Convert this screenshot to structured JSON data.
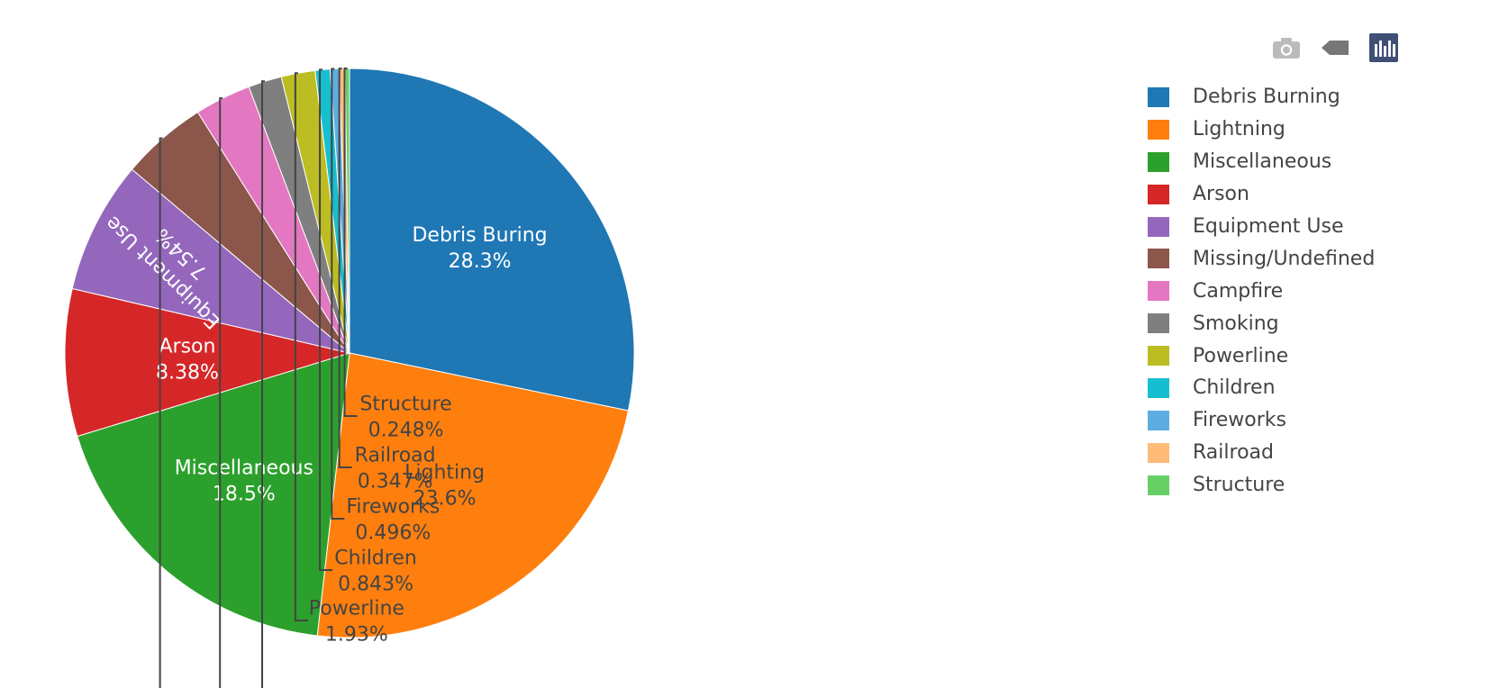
{
  "toolbar": {
    "buttons": [
      {
        "name": "camera-icon"
      },
      {
        "name": "tag-icon"
      },
      {
        "name": "plotly-logo-icon"
      }
    ]
  },
  "chart_data": {
    "type": "pie",
    "sort_clockwise_from_top": true,
    "labels": [
      "Debris Buring",
      "Lighting",
      "Miscellaneous",
      "Arson",
      "Equipment Use",
      "Missing/Undefined",
      "Campfire",
      "Smoking",
      "Powerline",
      "Children",
      "Fireworks",
      "Railroad",
      "Structure"
    ],
    "legend": [
      "Debris Burning",
      "Lightning",
      "Miscellaneous",
      "Arson",
      "Equipment Use",
      "Missing/Undefined",
      "Campfire",
      "Smoking",
      "Powerline",
      "Children",
      "Fireworks",
      "Railroad",
      "Structure"
    ],
    "values": [
      28.3,
      23.6,
      18.5,
      8.38,
      7.54,
      4.9,
      3.2,
      1.9,
      1.93,
      0.843,
      0.496,
      0.347,
      0.248
    ],
    "percent_labels": [
      "28.3%",
      "23.6%",
      "18.5%",
      "8.38%",
      "7.54%",
      "",
      "",
      "",
      "1.93%",
      "0.843%",
      "0.496%",
      "0.347%",
      "0.248%"
    ],
    "colors": [
      "#1f77b4",
      "#ff7f0e",
      "#2ca02c",
      "#d62728",
      "#9467bd",
      "#8c564b",
      "#e377c2",
      "#7f7f7f",
      "#bcbd22",
      "#17becf",
      "#5dade2",
      "#ffbb78",
      "#66d066"
    ],
    "legend_position": "top-right"
  }
}
